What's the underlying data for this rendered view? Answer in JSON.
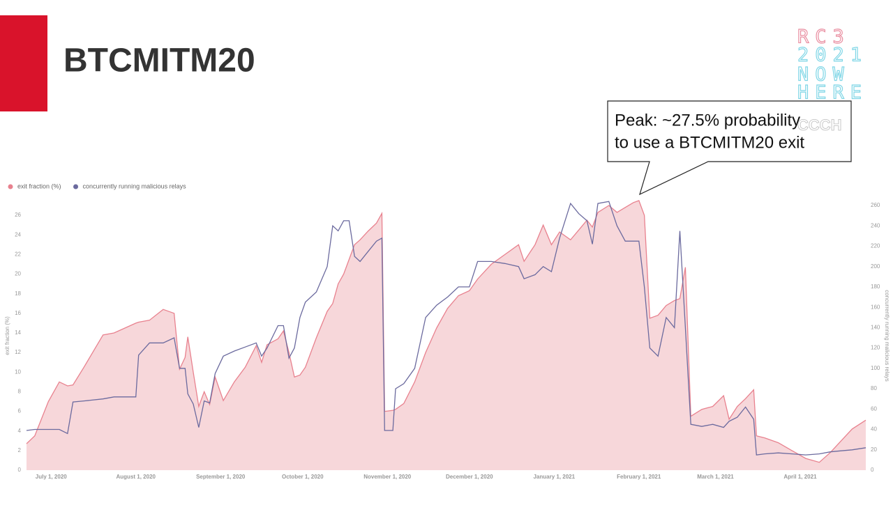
{
  "chart_data": {
    "type": "area-line",
    "title": "BTCMITM20",
    "y_label": "exit fraction (%)",
    "y2_label": "concurrently running malicious relays",
    "annotation": [
      "Peak: ~27.5% probability",
      "to use a BTCMITM20 exit"
    ],
    "x": [
      "2020-06-22",
      "2020-06-25",
      "2020-06-30",
      "2020-07-04",
      "2020-07-07",
      "2020-07-09",
      "2020-07-13",
      "2020-07-20",
      "2020-07-24",
      "2020-08-01",
      "2020-08-02",
      "2020-08-06",
      "2020-08-11",
      "2020-08-15",
      "2020-08-17",
      "2020-08-19",
      "2020-08-20",
      "2020-08-22",
      "2020-08-24",
      "2020-08-26",
      "2020-08-28",
      "2020-08-30",
      "2020-09-02",
      "2020-09-06",
      "2020-09-10",
      "2020-09-14",
      "2020-09-16",
      "2020-09-18",
      "2020-09-22",
      "2020-09-24",
      "2020-09-26",
      "2020-09-28",
      "2020-09-30",
      "2020-10-02",
      "2020-10-06",
      "2020-10-10",
      "2020-10-12",
      "2020-10-14",
      "2020-10-16",
      "2020-10-18",
      "2020-10-20",
      "2020-10-22",
      "2020-10-25",
      "2020-10-28",
      "2020-10-30",
      "2020-10-31",
      "2020-11-03",
      "2020-11-04",
      "2020-11-07",
      "2020-11-11",
      "2020-11-15",
      "2020-11-19",
      "2020-11-23",
      "2020-11-27",
      "2020-12-01",
      "2020-12-04",
      "2020-12-09",
      "2020-12-14",
      "2020-12-19",
      "2020-12-21",
      "2020-12-25",
      "2020-12-28",
      "2020-12-31",
      "2021-01-03",
      "2021-01-07",
      "2021-01-10",
      "2021-01-13",
      "2021-01-15",
      "2021-01-17",
      "2021-01-21",
      "2021-01-24",
      "2021-01-27",
      "2021-01-30",
      "2021-02-01",
      "2021-02-03",
      "2021-02-05",
      "2021-02-08",
      "2021-02-11",
      "2021-02-14",
      "2021-02-16",
      "2021-02-18",
      "2021-02-20",
      "2021-02-24",
      "2021-02-28",
      "2021-03-04",
      "2021-03-06",
      "2021-03-09",
      "2021-03-12",
      "2021-03-15",
      "2021-03-16",
      "2021-03-19",
      "2021-03-24",
      "2021-03-29",
      "2021-04-03",
      "2021-04-08",
      "2021-04-12",
      "2021-04-16",
      "2021-04-20",
      "2021-04-25"
    ],
    "series": [
      {
        "name": "exit fraction (%)",
        "color": "#e8818e",
        "fill": "#f7d7da",
        "axis": "y",
        "values": [
          2.7,
          3.5,
          7,
          9,
          8.6,
          8.7,
          10.5,
          13.8,
          14,
          15,
          15.1,
          15.3,
          16.4,
          16,
          10.3,
          11.5,
          13.6,
          10,
          6.5,
          8,
          6.7,
          9.5,
          7.1,
          9,
          10.5,
          12.7,
          11,
          12.8,
          13.4,
          14.2,
          12,
          9.5,
          9.7,
          10.5,
          13.5,
          16.2,
          17,
          19,
          20,
          21.5,
          23,
          23.5,
          24.4,
          25.2,
          26.2,
          6,
          6.1,
          6.2,
          6.8,
          9,
          12,
          14.5,
          16.5,
          17.8,
          18.3,
          19.5,
          21,
          22,
          23,
          21.3,
          23,
          25,
          23,
          24.3,
          23.5,
          24.5,
          25.5,
          24.8,
          26.3,
          27,
          26.3,
          26.8,
          27.3,
          27.5,
          26,
          15.5,
          15.8,
          16.8,
          17.3,
          17.5,
          20.7,
          5.5,
          6.2,
          6.5,
          7.6,
          5.2,
          6.5,
          7.3,
          8.2,
          3.5,
          3.3,
          2.8,
          2,
          1.2,
          0.8,
          1.8,
          3,
          4.2,
          5.1
        ]
      },
      {
        "name": "concurrently running malicious relays",
        "color": "#6b6a9e",
        "axis": "y2",
        "values": [
          39,
          40,
          40,
          40,
          36,
          67,
          68,
          70,
          72,
          72,
          113,
          125,
          125,
          130,
          100,
          100,
          75,
          65,
          42,
          68,
          66,
          95,
          112,
          117,
          121,
          125,
          112,
          120,
          142,
          142,
          110,
          120,
          150,
          165,
          175,
          200,
          240,
          235,
          245,
          245,
          210,
          205,
          215,
          225,
          228,
          39,
          39,
          80,
          85,
          100,
          150,
          162,
          170,
          180,
          180,
          205,
          205,
          203,
          200,
          188,
          192,
          200,
          195,
          228,
          262,
          252,
          245,
          222,
          262,
          264,
          240,
          225,
          225,
          225,
          180,
          120,
          112,
          150,
          140,
          235,
          140,
          45,
          43,
          45,
          42,
          48,
          52,
          62,
          50,
          15,
          16,
          17,
          16,
          15,
          16,
          18,
          19,
          20,
          22
        ]
      }
    ],
    "xlim": [
      "2020-06-22",
      "2021-04-25"
    ],
    "xticks": [
      {
        "value": "2020-07-01",
        "label": "July 1, 2020"
      },
      {
        "value": "2020-08-01",
        "label": "August 1, 2020"
      },
      {
        "value": "2020-09-01",
        "label": "September 1, 2020"
      },
      {
        "value": "2020-10-01",
        "label": "October 1, 2020"
      },
      {
        "value": "2020-11-01",
        "label": "November 1, 2020"
      },
      {
        "value": "2020-12-01",
        "label": "December 1, 2020"
      },
      {
        "value": "2021-01-01",
        "label": "January 1, 2021"
      },
      {
        "value": "2021-02-01",
        "label": "February 1, 2021"
      },
      {
        "value": "2021-03-01",
        "label": "March 1, 2021"
      },
      {
        "value": "2021-04-01",
        "label": "April 1, 2021"
      }
    ],
    "ylim": [
      0,
      27
    ],
    "yticks": [
      0,
      2,
      4,
      6,
      8,
      10,
      12,
      14,
      16,
      18,
      20,
      22,
      24,
      26
    ],
    "y2lim": [
      0,
      260
    ],
    "y2ticks": [
      0,
      20,
      40,
      60,
      80,
      100,
      120,
      140,
      160,
      180,
      200,
      220,
      240,
      260
    ],
    "grid": false,
    "legend": "top-left"
  },
  "logo": {
    "lines": [
      "RC3",
      "2021",
      "NOW",
      "HERE"
    ],
    "org": "CCCH"
  }
}
